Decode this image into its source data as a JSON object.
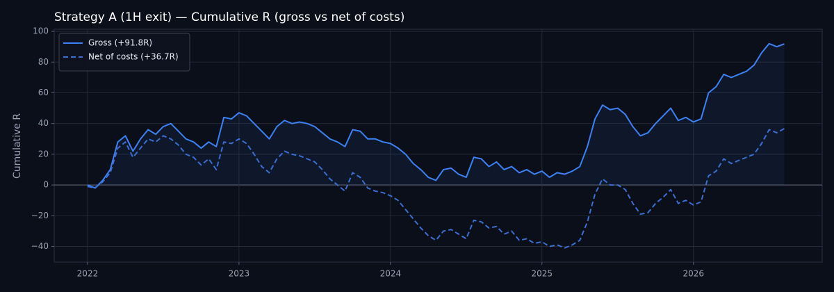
{
  "chart_data": {
    "type": "line",
    "title": "Strategy A (1H exit) — Cumulative R (gross vs net of costs)",
    "ylabel": "Cumulative R",
    "x": [
      2022.0,
      2022.05,
      2022.1,
      2022.15,
      2022.2,
      2022.25,
      2022.3,
      2022.35,
      2022.4,
      2022.45,
      2022.5,
      2022.55,
      2022.6,
      2022.65,
      2022.7,
      2022.75,
      2022.8,
      2022.85,
      2022.9,
      2022.95,
      2023.0,
      2023.05,
      2023.1,
      2023.15,
      2023.2,
      2023.25,
      2023.3,
      2023.35,
      2023.4,
      2023.45,
      2023.5,
      2023.55,
      2023.6,
      2023.65,
      2023.7,
      2023.75,
      2023.8,
      2023.85,
      2023.9,
      2023.95,
      2024.0,
      2024.05,
      2024.1,
      2024.15,
      2024.2,
      2024.25,
      2024.3,
      2024.35,
      2024.4,
      2024.45,
      2024.5,
      2024.55,
      2024.6,
      2024.65,
      2024.7,
      2024.75,
      2024.8,
      2024.85,
      2024.9,
      2024.95,
      2025.0,
      2025.05,
      2025.1,
      2025.15,
      2025.2,
      2025.25,
      2025.3,
      2025.35,
      2025.4,
      2025.45,
      2025.5,
      2025.55,
      2025.6,
      2025.65,
      2025.7,
      2025.75,
      2025.8,
      2025.85,
      2025.9,
      2025.95,
      2026.0,
      2026.05,
      2026.1,
      2026.15,
      2026.2,
      2026.25,
      2026.3,
      2026.35,
      2026.4,
      2026.45,
      2026.5,
      2026.55,
      2026.6
    ],
    "series": [
      {
        "name": "Gross (+91.8R)",
        "color": "#3b82f6",
        "linestyle": "solid",
        "fill": true,
        "values": [
          0,
          -2,
          3,
          10,
          28,
          32,
          22,
          30,
          36,
          33,
          38,
          40,
          35,
          30,
          28,
          24,
          28,
          25,
          44,
          43,
          47,
          45,
          40,
          35,
          30,
          38,
          42,
          40,
          41,
          40,
          38,
          34,
          30,
          28,
          25,
          36,
          35,
          30,
          30,
          28,
          27,
          24,
          20,
          14,
          10,
          5,
          3,
          10,
          11,
          7,
          5,
          18,
          17,
          12,
          15,
          10,
          12,
          8,
          10,
          7,
          9,
          5,
          8,
          7,
          9,
          12,
          25,
          43,
          52,
          49,
          50,
          46,
          38,
          32,
          34,
          40,
          45,
          50,
          42,
          44,
          41,
          43,
          60,
          64,
          72,
          70,
          72,
          74,
          78,
          86,
          92,
          90,
          91.8
        ]
      },
      {
        "name": "Net of costs (+36.7R)",
        "color": "#3b6fd4",
        "linestyle": "dashed",
        "fill": false,
        "values": [
          -1,
          -2,
          2,
          8,
          24,
          28,
          18,
          24,
          30,
          28,
          32,
          30,
          26,
          20,
          18,
          13,
          17,
          10,
          28,
          27,
          30,
          27,
          20,
          12,
          8,
          17,
          22,
          20,
          19,
          17,
          15,
          10,
          4,
          0,
          -4,
          8,
          5,
          -2,
          -4,
          -5,
          -7,
          -10,
          -16,
          -22,
          -28,
          -33,
          -36,
          -30,
          -29,
          -32,
          -35,
          -23,
          -24,
          -28,
          -27,
          -32,
          -30,
          -36,
          -35,
          -38,
          -37,
          -40,
          -39,
          -41,
          -39,
          -36,
          -24,
          -6,
          4,
          0,
          0,
          -3,
          -12,
          -19,
          -18,
          -12,
          -8,
          -3,
          -12,
          -10,
          -13,
          -11,
          6,
          9,
          17,
          14,
          16,
          18,
          20,
          27,
          36,
          34,
          36.7
        ]
      }
    ],
    "xlim": [
      2021.78,
      2026.85
    ],
    "xticks": [
      2022,
      2023,
      2024,
      2025,
      2026
    ],
    "ylim": [
      -50.2,
      101.4
    ],
    "yticks": [
      {
        "value": -40,
        "label": "−40"
      },
      {
        "value": -20,
        "label": "−20"
      },
      0,
      20,
      40,
      60,
      80,
      100
    ],
    "grid": true,
    "legend": "upper left"
  }
}
